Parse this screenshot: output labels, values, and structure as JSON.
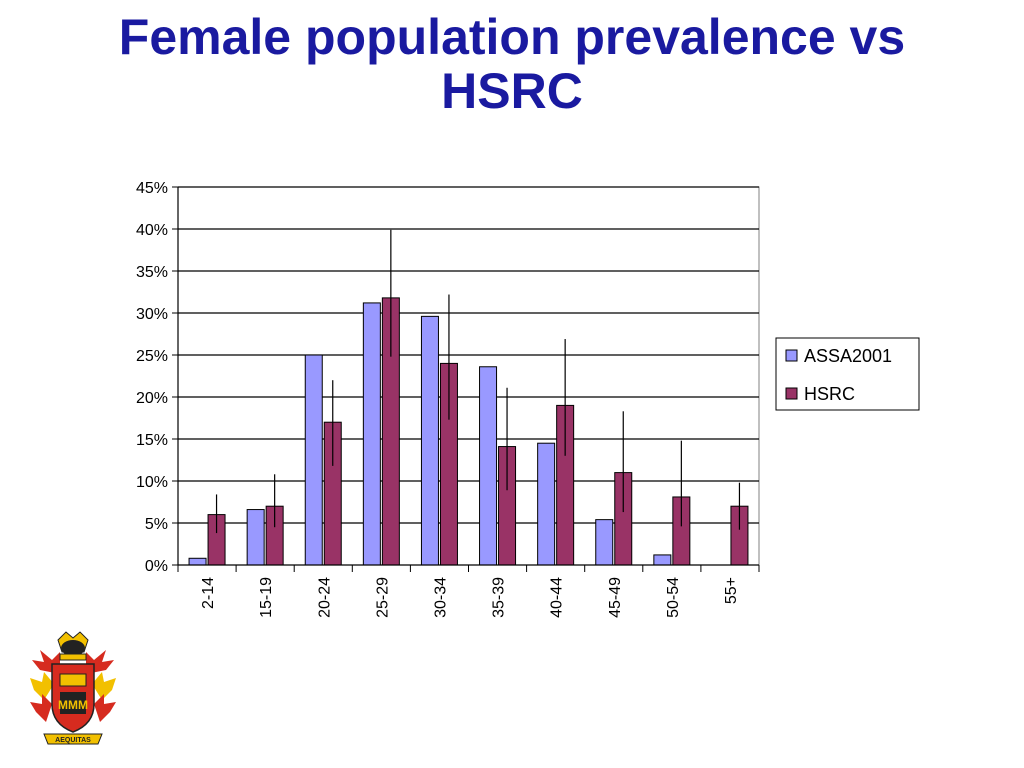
{
  "slide": {
    "title_line1": "Female population prevalence vs",
    "title_line2": "HSRC",
    "crest_motto": "AEQUITAS"
  },
  "colors": {
    "title": "#1a1aa0",
    "assa": "#9999ff",
    "hsrc": "#993366"
  },
  "chart_data": {
    "type": "bar",
    "title": "",
    "xlabel": "",
    "ylabel": "",
    "categories": [
      "2-14",
      "15-19",
      "20-24",
      "25-29",
      "30-34",
      "35-39",
      "40-44",
      "45-49",
      "50-54",
      "55+"
    ],
    "series": [
      {
        "name": "ASSA2001",
        "values": [
          0.8,
          6.6,
          25.0,
          31.2,
          29.6,
          23.6,
          14.5,
          5.4,
          1.2,
          0
        ]
      },
      {
        "name": "HSRC",
        "values": [
          6.0,
          7.0,
          17.0,
          31.8,
          24.0,
          14.1,
          19.0,
          11.0,
          8.1,
          7.0
        ],
        "error_low": [
          3.8,
          4.5,
          11.8,
          24.8,
          17.3,
          8.9,
          13.0,
          6.3,
          4.6,
          4.2
        ],
        "error_high": [
          8.4,
          10.8,
          22.0,
          39.9,
          32.2,
          21.1,
          26.9,
          18.3,
          14.8,
          9.8
        ]
      }
    ],
    "ylim": [
      0,
      45
    ],
    "yticks": [
      "0%",
      "5%",
      "10%",
      "15%",
      "20%",
      "25%",
      "30%",
      "35%",
      "40%",
      "45%"
    ],
    "grid": true,
    "legend": "right"
  }
}
